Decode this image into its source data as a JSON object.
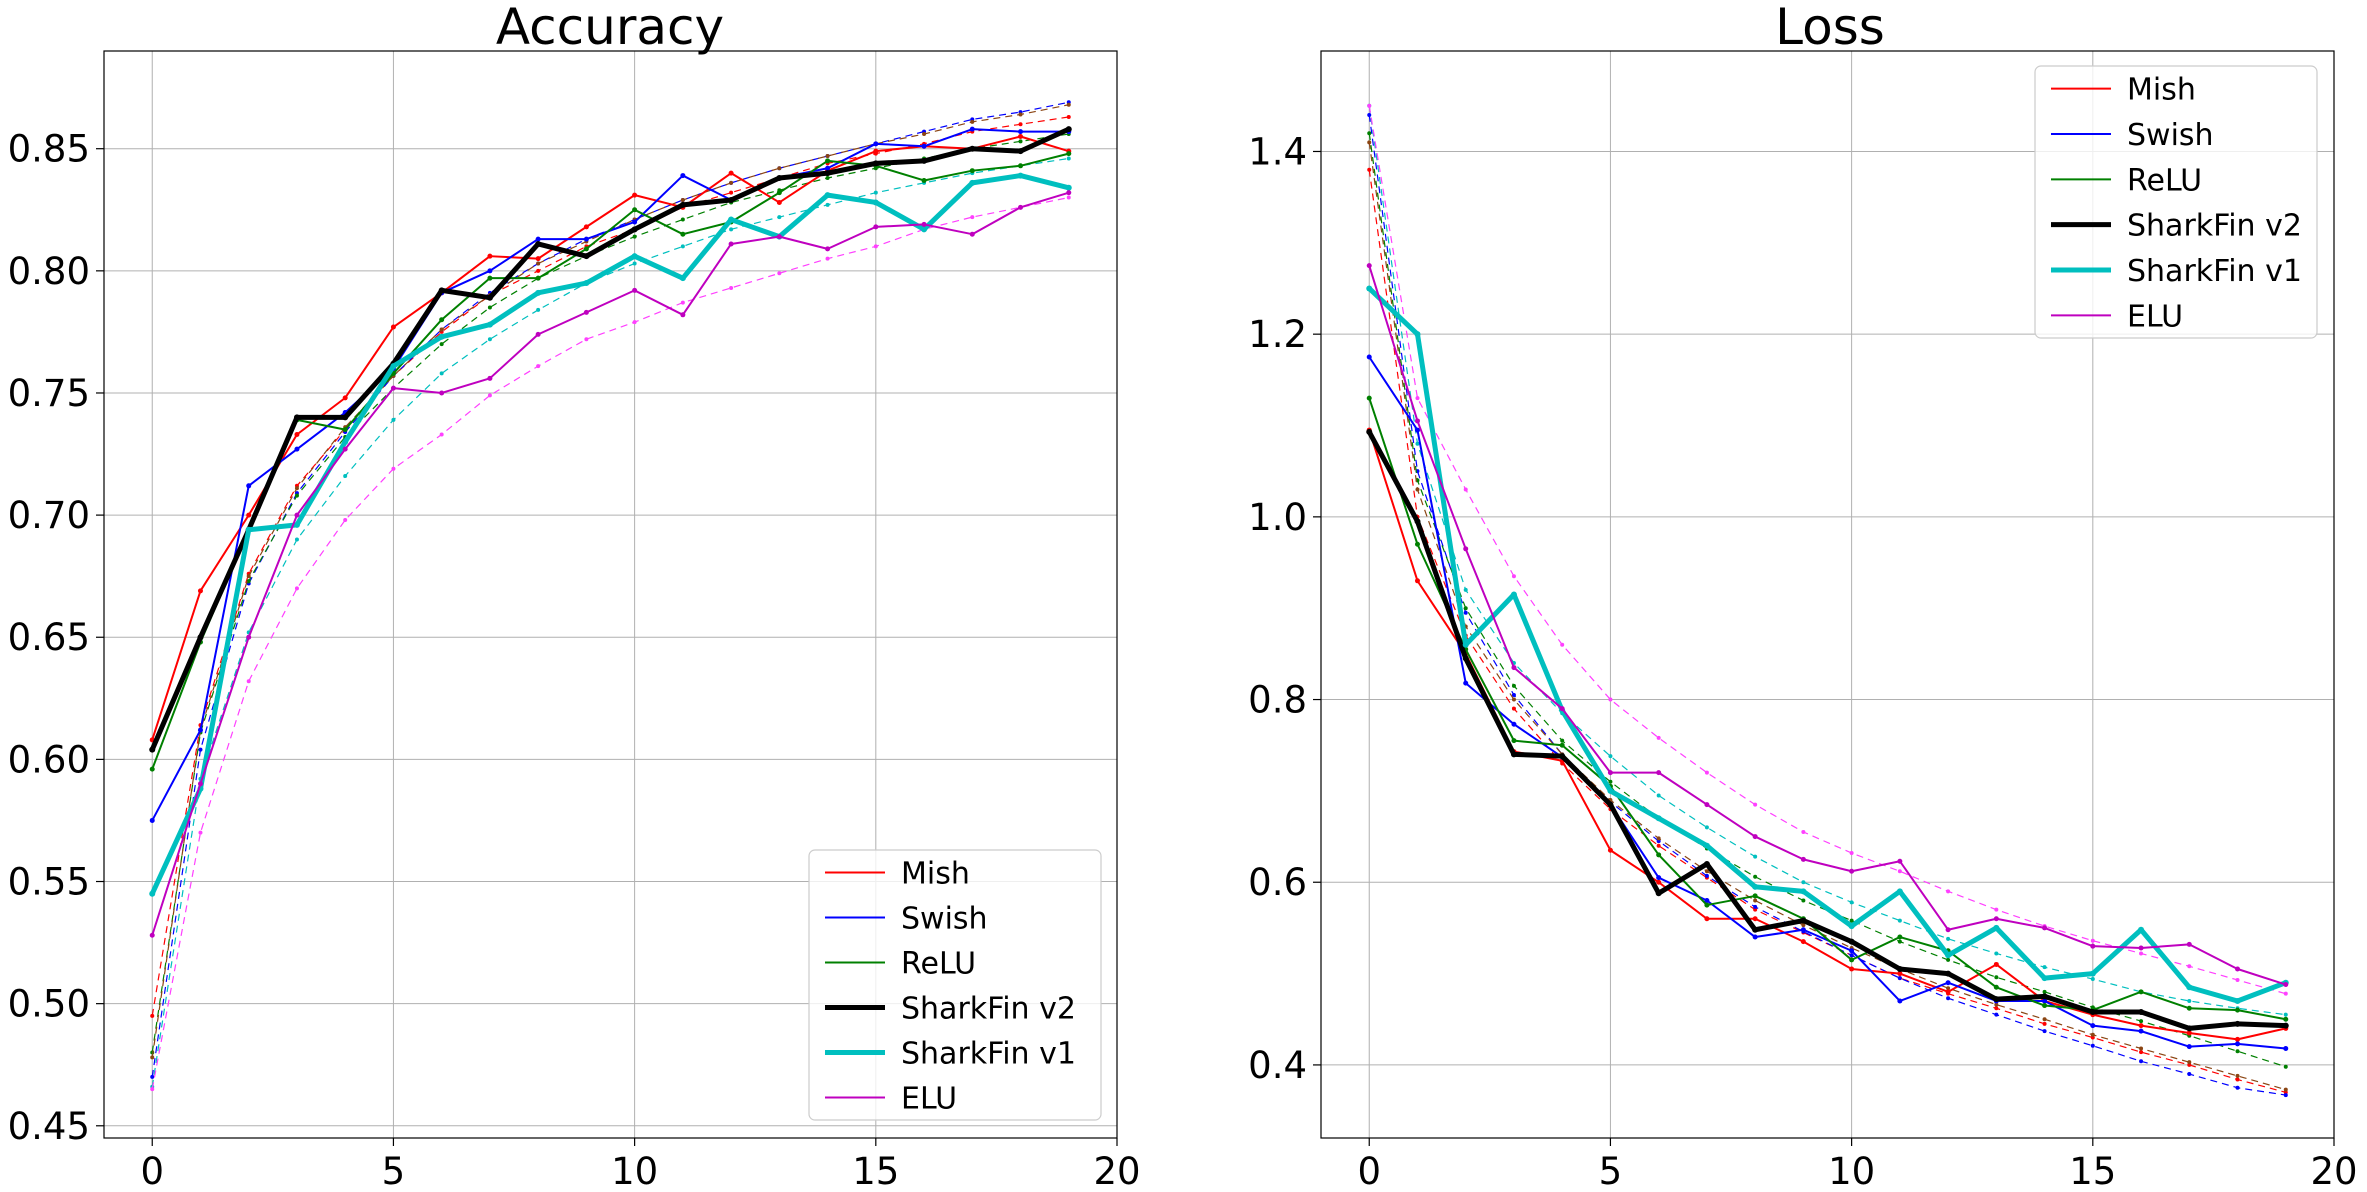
{
  "chart_data": [
    {
      "type": "line",
      "title": "Accuracy",
      "xlabel": "",
      "ylabel": "",
      "xlim": [
        -1,
        20
      ],
      "ylim": [
        0.445,
        0.89
      ],
      "xticks": [
        0,
        5,
        10,
        15,
        20
      ],
      "xtick_labels": [
        "0",
        "5",
        "10",
        "15",
        "20"
      ],
      "yticks": [
        0.45,
        0.5,
        0.55,
        0.6,
        0.65,
        0.7,
        0.75,
        0.8,
        0.85
      ],
      "ytick_labels": [
        "0.45",
        "0.50",
        "0.55",
        "0.60",
        "0.65",
        "0.70",
        "0.75",
        "0.80",
        "0.85"
      ],
      "grid": true,
      "legend_position": "lower right",
      "x": [
        0,
        1,
        2,
        3,
        4,
        5,
        6,
        7,
        8,
        9,
        10,
        11,
        12,
        13,
        14,
        15,
        16,
        17,
        18,
        19
      ],
      "series": [
        {
          "name": "Mish",
          "color": "#ff0000",
          "width": 2,
          "values": [
            0.608,
            0.669,
            0.7,
            0.733,
            0.748,
            0.777,
            0.791,
            0.806,
            0.805,
            0.818,
            0.831,
            0.826,
            0.84,
            0.828,
            0.841,
            0.849,
            0.851,
            0.85,
            0.855,
            0.849
          ]
        },
        {
          "name": "Swish",
          "color": "#0000ff",
          "width": 2,
          "values": [
            0.575,
            0.612,
            0.712,
            0.727,
            0.742,
            0.76,
            0.791,
            0.8,
            0.813,
            0.813,
            0.82,
            0.839,
            0.829,
            0.838,
            0.842,
            0.852,
            0.851,
            0.858,
            0.857,
            0.857
          ]
        },
        {
          "name": "ReLU",
          "color": "#008000",
          "width": 2,
          "values": [
            0.596,
            0.648,
            0.694,
            0.739,
            0.735,
            0.758,
            0.78,
            0.797,
            0.797,
            0.809,
            0.825,
            0.815,
            0.82,
            0.832,
            0.845,
            0.843,
            0.837,
            0.841,
            0.843,
            0.848
          ]
        },
        {
          "name": "SharkFin v2",
          "color": "#000000",
          "width": 5,
          "values": [
            0.604,
            0.65,
            0.694,
            0.74,
            0.74,
            0.762,
            0.792,
            0.789,
            0.811,
            0.806,
            0.817,
            0.827,
            0.829,
            0.838,
            0.84,
            0.844,
            0.845,
            0.85,
            0.849,
            0.858
          ]
        },
        {
          "name": "SharkFin v1",
          "color": "#00bfbf",
          "width": 5,
          "values": [
            0.545,
            0.588,
            0.694,
            0.696,
            0.73,
            0.761,
            0.773,
            0.778,
            0.791,
            0.795,
            0.806,
            0.797,
            0.821,
            0.814,
            0.831,
            0.828,
            0.817,
            0.836,
            0.839,
            0.834
          ]
        },
        {
          "name": "ELU",
          "color": "#bf00bf",
          "width": 2,
          "values": [
            0.528,
            0.59,
            0.65,
            0.7,
            0.727,
            0.752,
            0.75,
            0.756,
            0.774,
            0.783,
            0.792,
            0.782,
            0.811,
            0.814,
            0.809,
            0.818,
            0.819,
            0.815,
            0.826,
            0.832
          ]
        },
        {
          "name": "",
          "color": "#ff0000",
          "width": 1.2,
          "dashed": true,
          "values": [
            0.495,
            0.614,
            0.676,
            0.712,
            0.735,
            0.757,
            0.775,
            0.79,
            0.8,
            0.81,
            0.817,
            0.826,
            0.832,
            0.838,
            0.844,
            0.848,
            0.852,
            0.857,
            0.86,
            0.863
          ]
        },
        {
          "name": "",
          "color": "#0000ff",
          "width": 1.2,
          "dashed": true,
          "values": [
            0.47,
            0.604,
            0.672,
            0.709,
            0.734,
            0.757,
            0.776,
            0.791,
            0.803,
            0.813,
            0.821,
            0.829,
            0.836,
            0.842,
            0.847,
            0.852,
            0.857,
            0.862,
            0.865,
            0.869
          ]
        },
        {
          "name": "",
          "color": "#008000",
          "width": 1.2,
          "dashed": true,
          "values": [
            0.48,
            0.611,
            0.673,
            0.708,
            0.732,
            0.752,
            0.77,
            0.785,
            0.797,
            0.806,
            0.814,
            0.821,
            0.828,
            0.833,
            0.838,
            0.842,
            0.846,
            0.85,
            0.853,
            0.856
          ]
        },
        {
          "name": "",
          "color": "#8b4513",
          "width": 1.2,
          "dashed": true,
          "values": [
            0.478,
            0.612,
            0.675,
            0.711,
            0.736,
            0.757,
            0.776,
            0.79,
            0.803,
            0.812,
            0.821,
            0.829,
            0.836,
            0.842,
            0.847,
            0.852,
            0.856,
            0.861,
            0.864,
            0.868
          ]
        },
        {
          "name": "",
          "color": "#00bfbf",
          "width": 1.2,
          "dashed": true,
          "values": [
            0.466,
            0.592,
            0.652,
            0.69,
            0.716,
            0.739,
            0.758,
            0.772,
            0.784,
            0.795,
            0.803,
            0.81,
            0.817,
            0.822,
            0.827,
            0.832,
            0.836,
            0.84,
            0.843,
            0.846
          ]
        },
        {
          "name": "",
          "color": "#ff40ff",
          "width": 1.2,
          "dashed": true,
          "values": [
            0.465,
            0.57,
            0.632,
            0.67,
            0.698,
            0.719,
            0.733,
            0.749,
            0.761,
            0.772,
            0.779,
            0.787,
            0.793,
            0.799,
            0.805,
            0.81,
            0.817,
            0.822,
            0.826,
            0.83
          ]
        }
      ]
    },
    {
      "type": "line",
      "title": "Loss",
      "xlabel": "",
      "ylabel": "",
      "xlim": [
        -1,
        20
      ],
      "ylim": [
        0.32,
        1.51
      ],
      "xticks": [
        0,
        5,
        10,
        15,
        20
      ],
      "xtick_labels": [
        "0",
        "5",
        "10",
        "15",
        "20"
      ],
      "yticks": [
        0.4,
        0.6,
        0.8,
        1.0,
        1.2,
        1.4
      ],
      "ytick_labels": [
        "0.4",
        "0.6",
        "0.8",
        "1.0",
        "1.2",
        "1.4"
      ],
      "grid": true,
      "legend_position": "upper right",
      "x": [
        0,
        1,
        2,
        3,
        4,
        5,
        6,
        7,
        8,
        9,
        10,
        11,
        12,
        13,
        14,
        15,
        16,
        17,
        18,
        19
      ],
      "series": [
        {
          "name": "Mish",
          "color": "#ff0000",
          "width": 2,
          "values": [
            1.095,
            0.93,
            0.85,
            0.743,
            0.733,
            0.635,
            0.6,
            0.56,
            0.56,
            0.535,
            0.505,
            0.5,
            0.48,
            0.51,
            0.47,
            0.455,
            0.443,
            0.435,
            0.428,
            0.44
          ]
        },
        {
          "name": "Swish",
          "color": "#0000ff",
          "width": 2,
          "values": [
            1.175,
            1.095,
            0.818,
            0.773,
            0.737,
            0.685,
            0.605,
            0.58,
            0.54,
            0.548,
            0.525,
            0.47,
            0.49,
            0.47,
            0.47,
            0.443,
            0.437,
            0.42,
            0.423,
            0.418
          ]
        },
        {
          "name": "ReLU",
          "color": "#008000",
          "width": 2,
          "values": [
            1.13,
            0.97,
            0.855,
            0.755,
            0.75,
            0.705,
            0.63,
            0.575,
            0.585,
            0.56,
            0.515,
            0.54,
            0.525,
            0.485,
            0.465,
            0.46,
            0.48,
            0.462,
            0.46,
            0.45
          ]
        },
        {
          "name": "SharkFin v2",
          "color": "#000000",
          "width": 5,
          "values": [
            1.093,
            0.995,
            0.845,
            0.74,
            0.738,
            0.685,
            0.588,
            0.62,
            0.548,
            0.558,
            0.535,
            0.505,
            0.5,
            0.472,
            0.475,
            0.458,
            0.458,
            0.44,
            0.445,
            0.443
          ]
        },
        {
          "name": "SharkFin v1",
          "color": "#00bfbf",
          "width": 5,
          "values": [
            1.25,
            1.2,
            0.86,
            0.915,
            0.788,
            0.7,
            0.67,
            0.64,
            0.595,
            0.59,
            0.552,
            0.59,
            0.52,
            0.55,
            0.495,
            0.5,
            0.548,
            0.485,
            0.47,
            0.49
          ]
        },
        {
          "name": "ELU",
          "color": "#bf00bf",
          "width": 2,
          "values": [
            1.275,
            1.105,
            0.965,
            0.835,
            0.79,
            0.72,
            0.72,
            0.685,
            0.65,
            0.625,
            0.612,
            0.623,
            0.548,
            0.56,
            0.55,
            0.53,
            0.528,
            0.532,
            0.505,
            0.488
          ]
        },
        {
          "name": "",
          "color": "#ff0000",
          "width": 1.2,
          "dashed": true,
          "values": [
            1.38,
            1.0,
            0.87,
            0.79,
            0.73,
            0.68,
            0.64,
            0.605,
            0.57,
            0.545,
            0.52,
            0.495,
            0.478,
            0.462,
            0.445,
            0.43,
            0.414,
            0.4,
            0.384,
            0.37
          ]
        },
        {
          "name": "",
          "color": "#0000ff",
          "width": 1.2,
          "dashed": true,
          "values": [
            1.44,
            1.05,
            0.895,
            0.805,
            0.74,
            0.688,
            0.645,
            0.607,
            0.573,
            0.546,
            0.52,
            0.495,
            0.473,
            0.455,
            0.437,
            0.421,
            0.404,
            0.39,
            0.375,
            0.367
          ]
        },
        {
          "name": "",
          "color": "#008000",
          "width": 1.2,
          "dashed": true,
          "values": [
            1.42,
            1.04,
            0.9,
            0.815,
            0.755,
            0.71,
            0.67,
            0.637,
            0.606,
            0.58,
            0.558,
            0.535,
            0.515,
            0.496,
            0.48,
            0.463,
            0.448,
            0.432,
            0.415,
            0.398
          ]
        },
        {
          "name": "",
          "color": "#8b4513",
          "width": 1.2,
          "dashed": true,
          "values": [
            1.41,
            1.03,
            0.88,
            0.8,
            0.74,
            0.69,
            0.648,
            0.612,
            0.58,
            0.553,
            0.528,
            0.505,
            0.484,
            0.466,
            0.45,
            0.433,
            0.418,
            0.403,
            0.388,
            0.373
          ]
        },
        {
          "name": "",
          "color": "#00bfbf",
          "width": 1.2,
          "dashed": true,
          "values": [
            1.45,
            1.08,
            0.92,
            0.84,
            0.785,
            0.738,
            0.695,
            0.66,
            0.628,
            0.6,
            0.578,
            0.558,
            0.538,
            0.522,
            0.507,
            0.494,
            0.48,
            0.47,
            0.462,
            0.455
          ]
        },
        {
          "name": "",
          "color": "#ff40ff",
          "width": 1.2,
          "dashed": true,
          "values": [
            1.45,
            1.13,
            1.03,
            0.935,
            0.86,
            0.8,
            0.758,
            0.72,
            0.685,
            0.655,
            0.632,
            0.612,
            0.59,
            0.57,
            0.552,
            0.536,
            0.522,
            0.508,
            0.493,
            0.478
          ]
        }
      ]
    }
  ]
}
